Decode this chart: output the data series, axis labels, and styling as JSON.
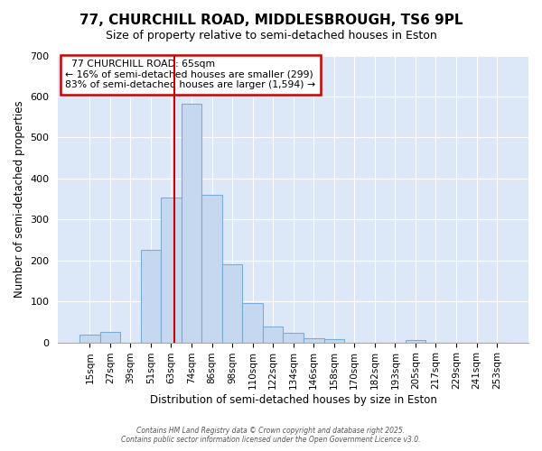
{
  "title_line1": "77, CHURCHILL ROAD, MIDDLESBROUGH, TS6 9PL",
  "title_line2": "Size of property relative to semi-detached houses in Eston",
  "xlabel": "Distribution of semi-detached houses by size in Eston",
  "ylabel": "Number of semi-detached properties",
  "bar_labels": [
    "15sqm",
    "27sqm",
    "39sqm",
    "51sqm",
    "63sqm",
    "74sqm",
    "86sqm",
    "98sqm",
    "110sqm",
    "122sqm",
    "134sqm",
    "146sqm",
    "158sqm",
    "170sqm",
    "182sqm",
    "193sqm",
    "205sqm",
    "217sqm",
    "229sqm",
    "241sqm",
    "253sqm"
  ],
  "bar_values": [
    18,
    25,
    0,
    225,
    353,
    582,
    360,
    190,
    95,
    38,
    23,
    10,
    7,
    0,
    0,
    0,
    5,
    0,
    0,
    0,
    0
  ],
  "bar_color": "#c5d8f0",
  "bar_edgecolor": "#7aadd4",
  "vline_label": "77 CHURCHILL ROAD: 65sqm",
  "pct_smaller": 16,
  "pct_larger": 83,
  "n_smaller": 299,
  "n_larger": 1594,
  "vline_color": "#cc0000",
  "vline_x": 4.15,
  "annotation_box_edgecolor": "#cc0000",
  "ylim": [
    0,
    700
  ],
  "yticks": [
    0,
    100,
    200,
    300,
    400,
    500,
    600,
    700
  ],
  "plot_bg_color": "#dce8f8",
  "fig_bg_color": "#ffffff",
  "grid_color": "#ffffff",
  "footer_line1": "Contains HM Land Registry data © Crown copyright and database right 2025.",
  "footer_line2": "Contains public sector information licensed under the Open Government Licence v3.0."
}
